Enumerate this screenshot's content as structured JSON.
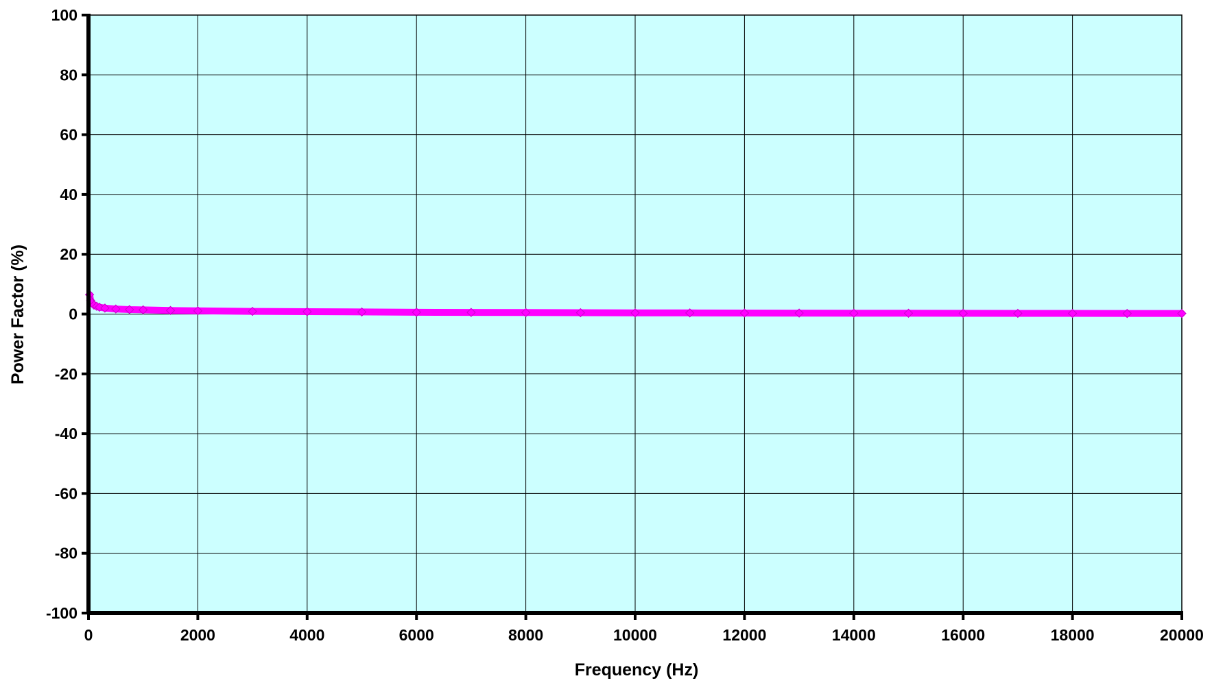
{
  "chart_data": {
    "type": "scatter",
    "title": "",
    "xlabel": "Frequency (Hz)",
    "ylabel": "Power Factor (%)",
    "xlim": [
      0,
      20000
    ],
    "ylim": [
      -100,
      100
    ],
    "x_ticks": [
      0,
      2000,
      4000,
      6000,
      8000,
      10000,
      12000,
      14000,
      16000,
      18000,
      20000
    ],
    "y_ticks": [
      100,
      80,
      60,
      40,
      20,
      0,
      -20,
      -40,
      -60,
      -80,
      -100
    ],
    "x_tick_labels": [
      "0",
      "2000",
      "4000",
      "6000",
      "8000",
      "10000",
      "12000",
      "14000",
      "16000",
      "18000",
      "20000"
    ],
    "y_tick_labels": [
      "100",
      "80",
      "60",
      "40",
      "20",
      "0",
      "-20",
      "-40",
      "-60",
      "-80",
      "-100"
    ],
    "grid": true,
    "plot_background": "#ccffff",
    "series": [
      {
        "color": "#ff00ff",
        "marker": "diamond",
        "x": [
          20,
          40,
          60,
          100,
          150,
          200,
          300,
          500,
          750,
          1000,
          1500,
          2000,
          3000,
          4000,
          5000,
          6000,
          7000,
          8000,
          9000,
          10000,
          11000,
          12000,
          13000,
          14000,
          15000,
          16000,
          17000,
          18000,
          19000,
          20000
        ],
        "y": [
          6.5,
          4.5,
          3.8,
          3.0,
          2.6,
          2.3,
          2.0,
          1.7,
          1.5,
          1.4,
          1.2,
          1.1,
          0.9,
          0.8,
          0.7,
          0.6,
          0.55,
          0.5,
          0.45,
          0.4,
          0.38,
          0.35,
          0.33,
          0.3,
          0.28,
          0.26,
          0.24,
          0.22,
          0.2,
          0.2
        ]
      }
    ]
  }
}
